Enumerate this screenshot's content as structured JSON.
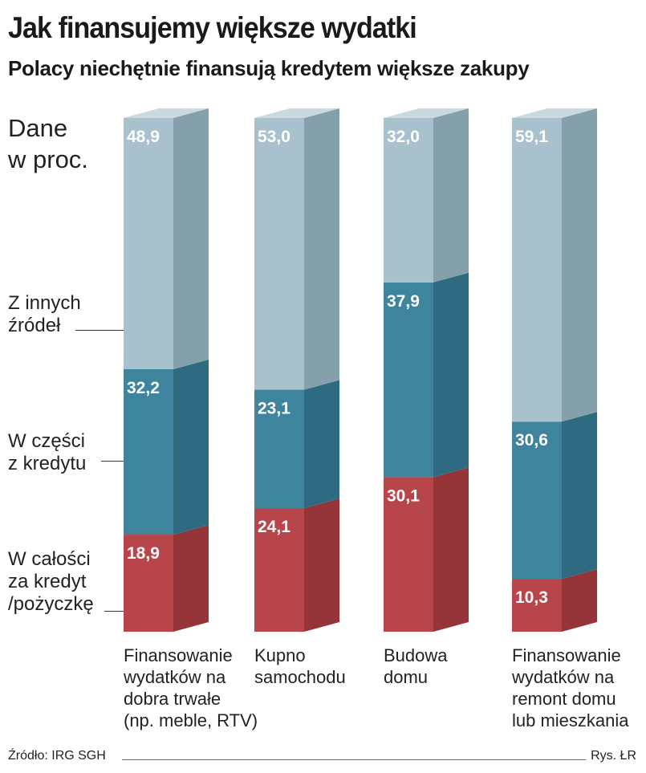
{
  "title": "Jak finansujemy większe wydatki",
  "subtitle": "Polacy niechętnie finansują kredytem większe zakupy",
  "units": [
    "Dane",
    "w proc."
  ],
  "legend": [
    [
      "Z innych",
      "źródeł"
    ],
    [
      "W części",
      "z kredytu"
    ],
    [
      "W całości",
      "za kredyt",
      "/pożyczkę"
    ]
  ],
  "source": "Źródło: IRG SGH",
  "credit": "Rys. ŁR",
  "colors": {
    "other_front": "#a8c1cc",
    "other_side": "#84a0ab",
    "other_top": "#c9d9df",
    "partial_front": "#3f849d",
    "partial_side": "#2f6b80",
    "full_front": "#b8454a",
    "full_side": "#963539",
    "value_label": "#ffffff"
  },
  "chart_data": {
    "type": "bar",
    "stacked": true,
    "categories": [
      [
        "Finansowanie",
        "wydatków na",
        "dobra trwałe",
        "(np. meble, RTV)"
      ],
      [
        "Kupno",
        "samochodu"
      ],
      [
        "Budowa",
        "domu"
      ],
      [
        "Finansowanie",
        "wydatków na",
        "remont domu",
        "lub mieszkania"
      ]
    ],
    "series": [
      {
        "name": "W całości za kredyt /pożyczkę",
        "values": [
          18.9,
          24.1,
          30.1,
          10.3
        ],
        "labels": [
          "18,9",
          "24,1",
          "30,1",
          "10,3"
        ]
      },
      {
        "name": "W części z kredytu",
        "values": [
          32.2,
          23.1,
          37.9,
          30.6
        ],
        "labels": [
          "32,2",
          "23,1",
          "37,9",
          "30,6"
        ]
      },
      {
        "name": "Z innych źródeł",
        "values": [
          48.9,
          53.0,
          32.0,
          59.1
        ],
        "labels": [
          "48,9",
          "53,0",
          "32,0",
          "59,1"
        ]
      }
    ]
  }
}
